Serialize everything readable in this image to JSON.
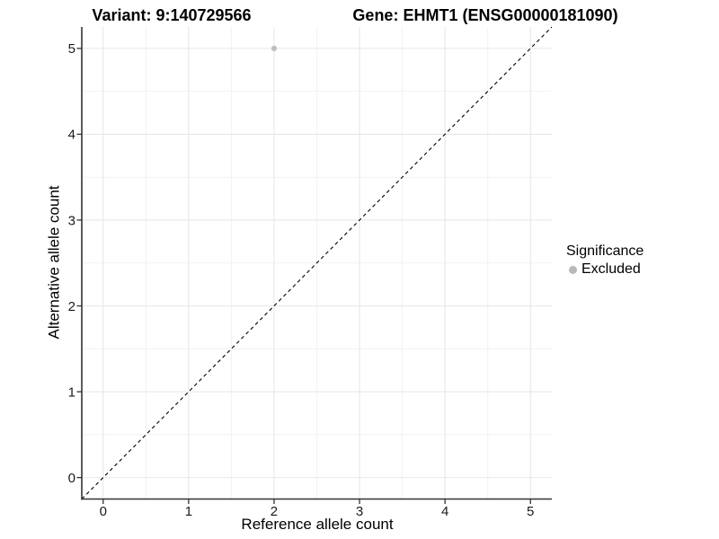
{
  "chart_data": {
    "type": "scatter",
    "titles": {
      "left": "Variant: 9:140729566",
      "right": "Gene: EHMT1 (ENSG00000181090)"
    },
    "xlabel": "Reference allele count",
    "ylabel": "Alternative allele count",
    "xlim": [
      -0.25,
      5.25
    ],
    "ylim": [
      -0.25,
      5.25
    ],
    "x_ticks": [
      0,
      1,
      2,
      3,
      4,
      5
    ],
    "y_ticks": [
      0,
      1,
      2,
      3,
      4,
      5
    ],
    "x_minor_ticks": [
      0.5,
      1.5,
      2.5,
      3.5,
      4.5
    ],
    "y_minor_ticks": [
      0.5,
      1.5,
      2.5,
      3.5,
      4.5
    ],
    "grid": "major+minor",
    "background_color": "#ffffff",
    "grid_major_color": "#e7e7e7",
    "grid_minor_color": "#f2f2f2",
    "axis_line_color": "#333333",
    "series": [
      {
        "name": "Excluded",
        "color": "#bebebe",
        "marker": "circle",
        "points": [
          {
            "x": 2,
            "y": 5
          }
        ]
      }
    ],
    "reference_line": {
      "slope": 1,
      "intercept": 0,
      "style": "dashed",
      "color": "#000000"
    },
    "legend": {
      "title": "Significance",
      "position": "right",
      "entries": [
        {
          "label": "Excluded",
          "color": "#b9b9b9",
          "marker": "circle"
        }
      ]
    }
  }
}
